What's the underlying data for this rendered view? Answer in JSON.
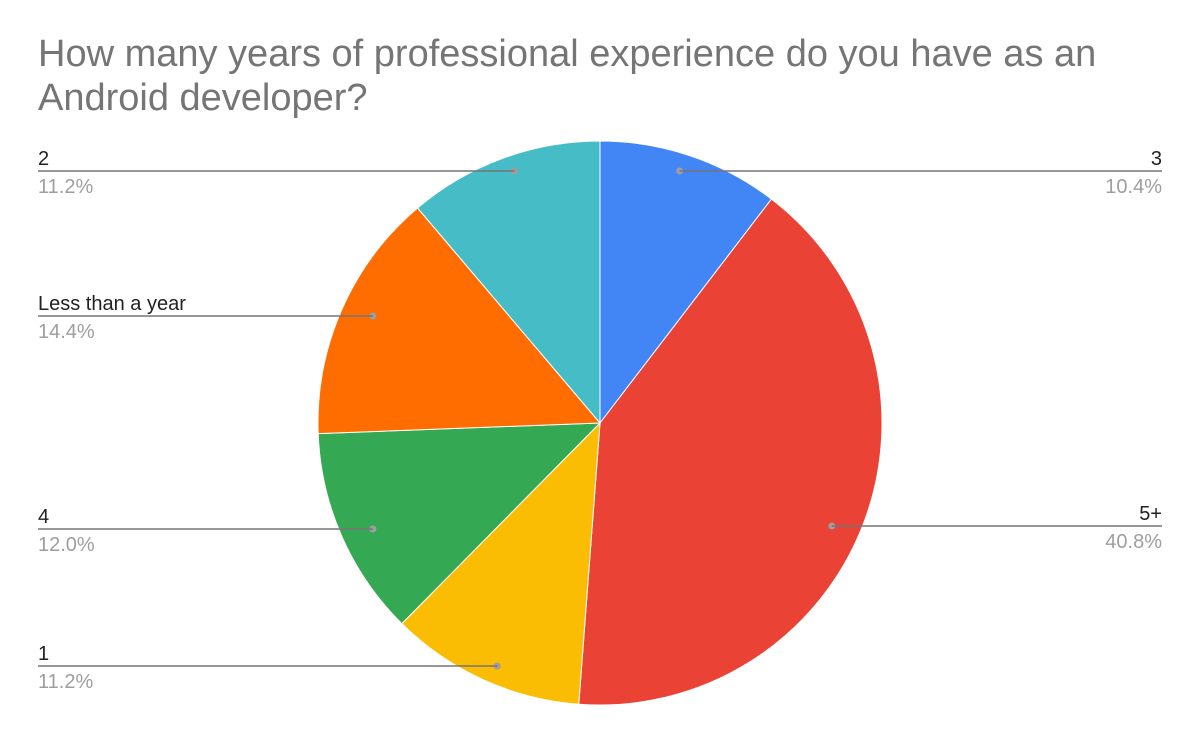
{
  "chart_data": {
    "type": "pie",
    "title": "How many years of professional experience do you have as an Android developer?",
    "slices": [
      {
        "label": "3",
        "value": 10.4,
        "display": "10.4%",
        "color": "#4285f4",
        "side": "right"
      },
      {
        "label": "5+",
        "value": 40.8,
        "display": "40.8%",
        "color": "#ea4335",
        "side": "right"
      },
      {
        "label": "1",
        "value": 11.2,
        "display": "11.2%",
        "color": "#fbbc04",
        "side": "left"
      },
      {
        "label": "4",
        "value": 12.0,
        "display": "12.0%",
        "color": "#34a853",
        "side": "left"
      },
      {
        "label": "Less than a year",
        "value": 14.4,
        "display": "14.4%",
        "color": "#ff6d01",
        "side": "left"
      },
      {
        "label": "2",
        "value": 11.2,
        "display": "11.2%",
        "color": "#46bdc6",
        "side": "left"
      }
    ],
    "start_angle": "top",
    "direction": "clockwise",
    "legend": "labels with leader lines"
  }
}
